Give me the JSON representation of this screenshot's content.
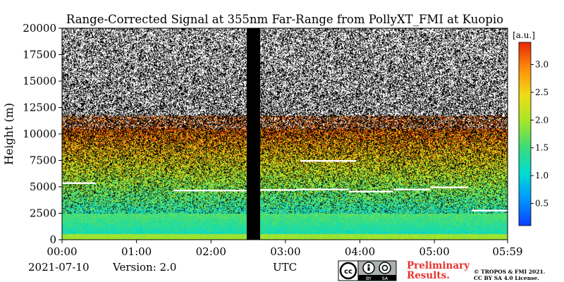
{
  "chart_data": {
    "type": "heatmap",
    "title": "Range-Corrected Signal at 355nm Far-Range from PollyXT_FMI at Kuopio",
    "ylabel": "Height (m)",
    "xlabel": "UTC",
    "ylim": [
      0,
      20000
    ],
    "yticks": [
      0,
      2500,
      5000,
      7500,
      10000,
      12500,
      15000,
      17500,
      20000
    ],
    "xticks": [
      "00:00",
      "01:00",
      "02:00",
      "03:00",
      "04:00",
      "05:00",
      "05:59"
    ],
    "time_range_hours": [
      0,
      5.983
    ],
    "colorbar": {
      "unit": "[a.u.]",
      "range": [
        0.1,
        3.4
      ],
      "ticks": [
        "0.5",
        "1.0",
        "1.5",
        "2.0",
        "2.5",
        "3.0"
      ],
      "colormap": [
        "#0b3fff",
        "#0096ff",
        "#00dcd2",
        "#3cdc78",
        "#a8e628",
        "#f0dc14",
        "#ff8c0a",
        "#e6280a"
      ]
    },
    "no_data_intervals_hours": [
      [
        2.48,
        2.66
      ]
    ],
    "cloud_layers": [
      {
        "start": 0.0,
        "end": 0.45,
        "height": 5350
      },
      {
        "start": 1.5,
        "end": 2.48,
        "height": 4650
      },
      {
        "start": 2.66,
        "end": 3.15,
        "height": 4700
      },
      {
        "start": 3.15,
        "end": 3.85,
        "height": 4750
      },
      {
        "start": 3.85,
        "end": 4.45,
        "height": 4550
      },
      {
        "start": 4.45,
        "end": 4.95,
        "height": 4750
      },
      {
        "start": 4.95,
        "end": 5.45,
        "height": 4950
      },
      {
        "start": 5.5,
        "end": 5.98,
        "height": 2750
      },
      {
        "start": 3.2,
        "end": 3.95,
        "height": 7450
      }
    ],
    "aerosol_layer_top_m": 2500,
    "noise_boundary_m": 10500
  },
  "footer": {
    "date": "2021-07-10",
    "version": "Version: 2.0",
    "preliminary_line1": "Preliminary",
    "preliminary_line2": "Results.",
    "copyright_line1": "© TROPOS & FMI 2021.",
    "copyright_line2": "CC BY SA 4.0 License."
  },
  "license_badge": {
    "left": "cc",
    "by": "BY",
    "sa": "SA"
  },
  "colors": {
    "preliminary": "#e8322e",
    "plot_background": "#000000"
  }
}
